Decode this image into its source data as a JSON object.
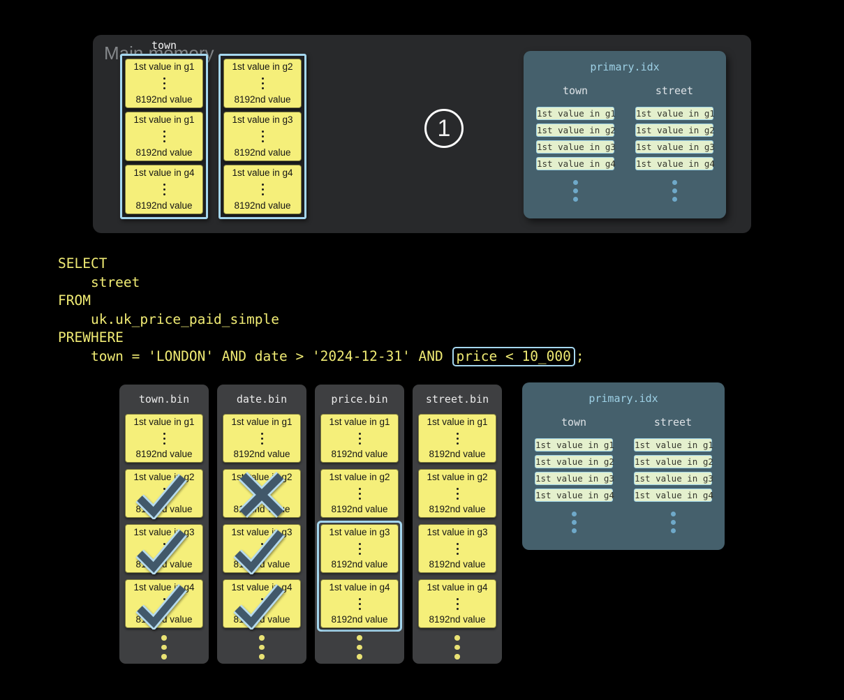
{
  "colors": {
    "page_bg": "#000000",
    "panel_bg": "#28292b",
    "stack_inner_bg": "#1f2123",
    "bin_bg": "#3e3f41",
    "granule_bg": "#f5ef7a",
    "highlight": "#a5d7ef",
    "idx_bg": "#45606c",
    "idx_title": "#9ed1e6",
    "idx_entry_bg": "#e4f0cd",
    "idx_entry_border": "#a0d4e8",
    "sql_text": "#f0eb74",
    "mark_dark": "#41586a",
    "mark_light": "#b5daee",
    "dot_yellow": "#e9e274",
    "dot_blue": "#6fa9c9"
  },
  "main_memory": {
    "label": "Main memory",
    "column_label": "town",
    "step_badge": "1",
    "stacks": [
      {
        "dots": 0,
        "highlight": null,
        "granules": [
          {
            "top": "1st value in g1",
            "bottom": "8192nd value",
            "mark": null
          },
          {
            "top": "1st value in g1",
            "bottom": "8192nd value",
            "mark": null
          },
          {
            "top": "1st value in g4",
            "bottom": "8192nd value",
            "mark": null
          }
        ]
      },
      {
        "dots": 0,
        "highlight": null,
        "granules": [
          {
            "top": "1st value in g2",
            "bottom": "8192nd value",
            "mark": null
          },
          {
            "top": "1st value in g3",
            "bottom": "8192nd value",
            "mark": null
          },
          {
            "top": "1st value in g4",
            "bottom": "8192nd value",
            "mark": null
          }
        ]
      }
    ]
  },
  "primary_index": {
    "title": "primary.idx",
    "columns": [
      {
        "label": "town",
        "dots": 3,
        "entries": [
          "1st value in g1",
          "1st value in g2",
          "1st value in g3",
          "1st value in g4"
        ]
      },
      {
        "label": "street",
        "dots": 3,
        "entries": [
          "1st value in g1",
          "1st value in g2",
          "1st value in g3",
          "1st value in g4"
        ]
      }
    ]
  },
  "sql": {
    "lines": [
      {
        "text": "SELECT"
      },
      {
        "text": "    street"
      },
      {
        "text": "FROM"
      },
      {
        "text": "    uk.uk_price_paid_simple"
      },
      {
        "text": "PREWHERE"
      },
      {
        "prefix": "    town = 'LONDON' AND date > '2024-12-31' AND ",
        "boxed": "price < 10_000",
        "suffix": ";"
      }
    ]
  },
  "bin_columns": [
    {
      "title": "town.bin",
      "dots": 3,
      "highlight": null,
      "granules": [
        {
          "top": "1st value in g1",
          "bottom": "8192nd value",
          "mark": null
        },
        {
          "top": "1st value in g2",
          "bottom": "8192nd value",
          "mark": "check"
        },
        {
          "top": "1st value in g3",
          "bottom": "8192nd value",
          "mark": "check"
        },
        {
          "top": "1st value in g4",
          "bottom": "8192nd value",
          "mark": "check"
        }
      ]
    },
    {
      "title": "date.bin",
      "dots": 3,
      "highlight": null,
      "granules": [
        {
          "top": "1st value in g1",
          "bottom": "8192nd value",
          "mark": null
        },
        {
          "top": "1st value in g2",
          "bottom": "8192nd value",
          "mark": "x"
        },
        {
          "top": "1st value in g3",
          "bottom": "8192nd value",
          "mark": "check"
        },
        {
          "top": "1st value in g4",
          "bottom": "8192nd value",
          "mark": "check"
        }
      ]
    },
    {
      "title": "price.bin",
      "dots": 3,
      "highlight": [
        2,
        3
      ],
      "granules": [
        {
          "top": "1st value in g1",
          "bottom": "8192nd value",
          "mark": null
        },
        {
          "top": "1st value in g2",
          "bottom": "8192nd value",
          "mark": null
        },
        {
          "top": "1st value in g3",
          "bottom": "8192nd value",
          "mark": null
        },
        {
          "top": "1st value in g4",
          "bottom": "8192nd value",
          "mark": null
        }
      ]
    },
    {
      "title": "street.bin",
      "dots": 3,
      "highlight": null,
      "granules": [
        {
          "top": "1st value in g1",
          "bottom": "8192nd value",
          "mark": null
        },
        {
          "top": "1st value in g2",
          "bottom": "8192nd value",
          "mark": null
        },
        {
          "top": "1st value in g3",
          "bottom": "8192nd value",
          "mark": null
        },
        {
          "top": "1st value in g4",
          "bottom": "8192nd value",
          "mark": null
        }
      ]
    }
  ]
}
